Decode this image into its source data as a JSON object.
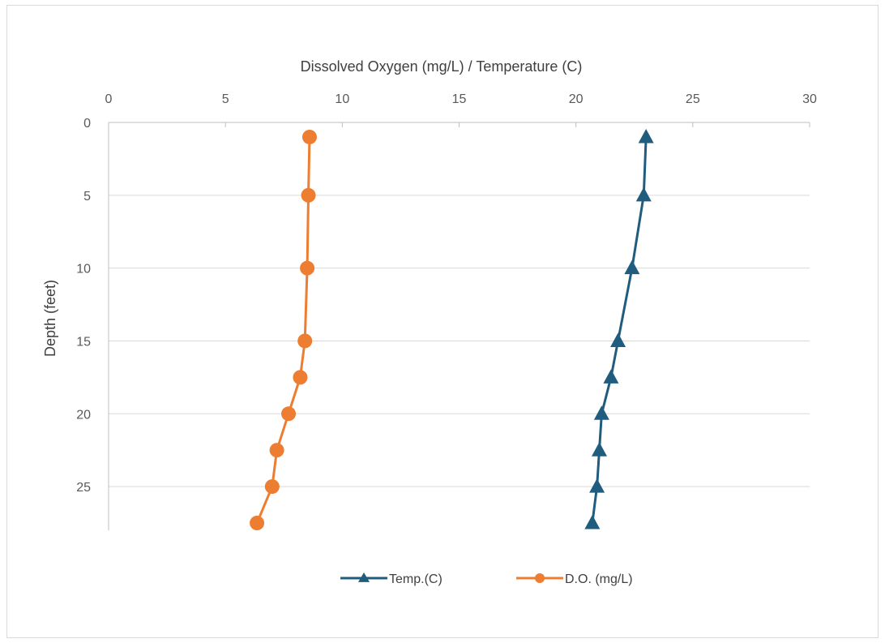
{
  "chart_data": {
    "type": "line",
    "orientation": "depth-profile",
    "xlabel": "Dissolved Oxygen (mg/L) / Temperature (C)",
    "ylabel": "Depth (feet)",
    "x_axis_position": "top",
    "y_axis_inverted": true,
    "xlim": [
      0,
      30
    ],
    "ylim": [
      0,
      28
    ],
    "x_ticks": [
      "0",
      "5",
      "10",
      "15",
      "20",
      "25",
      "30"
    ],
    "y_ticks": [
      "0",
      "5",
      "10",
      "15",
      "20",
      "25"
    ],
    "grid": "horizontal",
    "legend_position": "bottom",
    "series": [
      {
        "name": "Temp.(C)",
        "color": "#1f5c7e",
        "marker": "triangle",
        "points": [
          {
            "value": 23.0,
            "depth": 1
          },
          {
            "value": 22.9,
            "depth": 5
          },
          {
            "value": 22.4,
            "depth": 10
          },
          {
            "value": 21.8,
            "depth": 15
          },
          {
            "value": 21.5,
            "depth": 17.5
          },
          {
            "value": 21.1,
            "depth": 20
          },
          {
            "value": 21.0,
            "depth": 22.5
          },
          {
            "value": 20.9,
            "depth": 25
          },
          {
            "value": 20.7,
            "depth": 27.5
          }
        ]
      },
      {
        "name": "D.O. (mg/L)",
        "color": "#ed7d31",
        "marker": "circle",
        "points": [
          {
            "value": 8.6,
            "depth": 1
          },
          {
            "value": 8.55,
            "depth": 5
          },
          {
            "value": 8.5,
            "depth": 10
          },
          {
            "value": 8.4,
            "depth": 15
          },
          {
            "value": 8.2,
            "depth": 17.5
          },
          {
            "value": 7.7,
            "depth": 20
          },
          {
            "value": 7.2,
            "depth": 22.5
          },
          {
            "value": 7.0,
            "depth": 25
          },
          {
            "value": 6.35,
            "depth": 27.5
          }
        ]
      }
    ]
  }
}
